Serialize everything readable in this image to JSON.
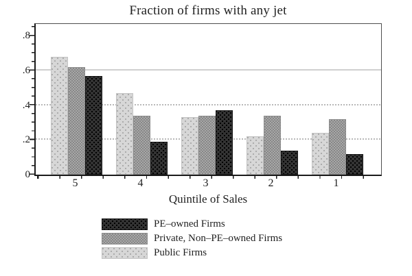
{
  "chart_data": {
    "type": "bar",
    "title": "Fraction of firms with any jet",
    "xlabel": "Quintile of Sales",
    "ylabel": "",
    "categories": [
      "5",
      "4",
      "3",
      "2",
      "1"
    ],
    "series": [
      {
        "name": "PE–owned Firms",
        "pattern": "dark",
        "color": "#333333",
        "values": [
          0.57,
          0.19,
          0.37,
          0.14,
          0.12
        ]
      },
      {
        "name": "Private, Non–PE–owned Firms",
        "pattern": "mid",
        "color": "#9a9a9a",
        "values": [
          0.62,
          0.34,
          0.34,
          0.34,
          0.32
        ]
      },
      {
        "name": "Public Firms",
        "pattern": "light",
        "color": "#d7d7d7",
        "values": [
          0.68,
          0.47,
          0.33,
          0.22,
          0.24
        ]
      }
    ],
    "bar_order_left_to_right": [
      "Public Firms",
      "Private, Non–PE–owned Firms",
      "PE–owned Firms"
    ],
    "y_ticks": [
      "0",
      ".2",
      ".4",
      ".6",
      ".8"
    ],
    "y_tick_values": [
      0,
      0.2,
      0.4,
      0.6,
      0.8
    ],
    "y_minor_tick_step": 0.05,
    "ylim": [
      0,
      0.88
    ],
    "gridlines_at": [
      0.2,
      0.4,
      0.6
    ],
    "grid": "horizontal",
    "legend_position": "below-chart"
  }
}
